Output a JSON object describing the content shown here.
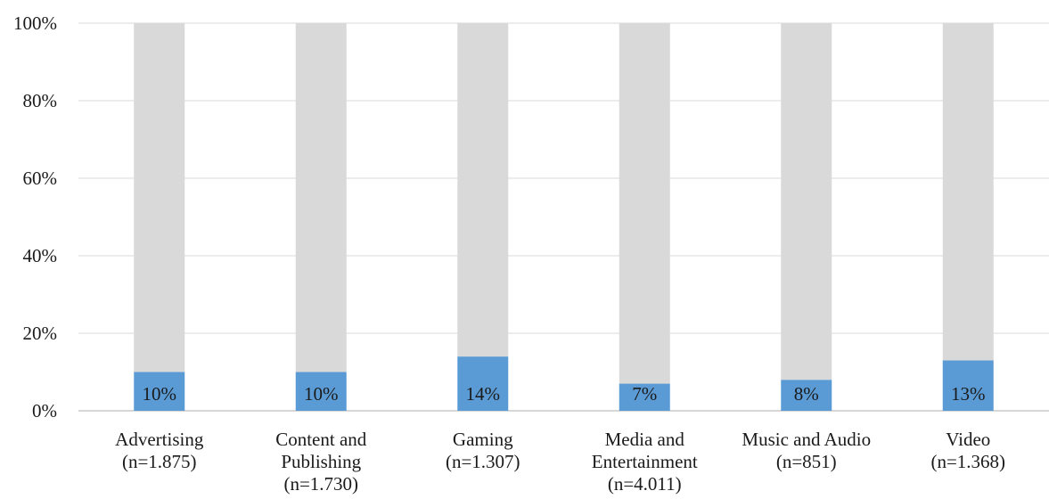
{
  "chart_data": {
    "type": "bar",
    "stacked": true,
    "percent_stacked": true,
    "categories": [
      [
        "Advertising",
        "(n=1.875)"
      ],
      [
        "Content and",
        "Publishing",
        "(n=1.730)"
      ],
      [
        "Gaming",
        "(n=1.307)"
      ],
      [
        "Media and",
        "Entertainment",
        "(n=4.011)"
      ],
      [
        "Music and Audio",
        "(n=851)"
      ],
      [
        "Video",
        "(n=1.368)"
      ]
    ],
    "series": [
      {
        "values": [
          10,
          10,
          14,
          7,
          8,
          13
        ],
        "color": "#5b9bd5",
        "data_labels": [
          "10%",
          "10%",
          "14%",
          "7%",
          "8%",
          "13%"
        ]
      },
      {
        "values": [
          90,
          90,
          86,
          93,
          92,
          87
        ],
        "color": "#d9d9d9"
      }
    ],
    "ylim": [
      0,
      100
    ],
    "y_ticks": [
      "0%",
      "20%",
      "40%",
      "60%",
      "80%",
      "100%"
    ],
    "grid": true,
    "legend": "none",
    "title": "",
    "xlabel": "",
    "ylabel": ""
  }
}
